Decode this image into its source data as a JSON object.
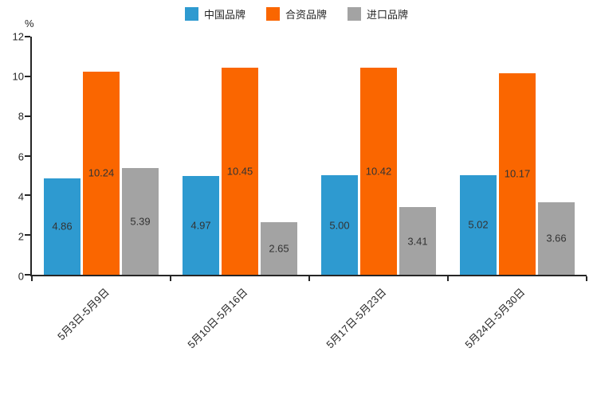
{
  "chart_data": {
    "type": "bar",
    "title": "",
    "unit_label": "%",
    "categories": [
      "5月3日-5月9日",
      "5月10日-5月16日",
      "5月17日-5月23日",
      "5月24日-5月30日"
    ],
    "series": [
      {
        "name": "中国品牌",
        "color": "#2E9AD0",
        "values": [
          4.86,
          4.97,
          5.0,
          5.02
        ]
      },
      {
        "name": "合资品牌",
        "color": "#FA6600",
        "values": [
          10.24,
          10.45,
          10.42,
          10.17
        ]
      },
      {
        "name": "进口品牌",
        "color": "#A3A3A3",
        "values": [
          5.39,
          2.65,
          3.41,
          3.66
        ]
      }
    ],
    "xlabel": "",
    "ylabel": "%",
    "ylim": [
      0,
      12
    ],
    "yticks": [
      0,
      2,
      4,
      6,
      8,
      10,
      12
    ],
    "legend_position": "top",
    "grid": false,
    "value_label_decimals": 2
  }
}
